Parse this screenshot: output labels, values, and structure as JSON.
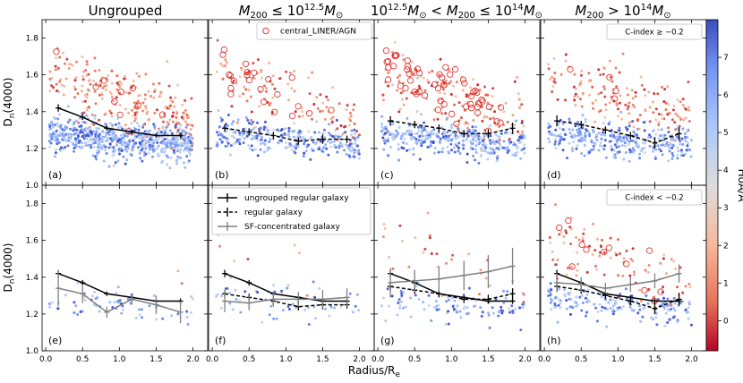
{
  "chart_data": {
    "type": "scatter",
    "x_label": "Radius/R",
    "x_label_sub": "e",
    "y_label": "D",
    "y_label_sub": "n",
    "y_label_tail": "(4000)",
    "xlim": [
      -0.05,
      2.2
    ],
    "ylim": [
      1.0,
      1.9
    ],
    "x_ticks": [
      0.0,
      0.5,
      1.0,
      1.5,
      2.0
    ],
    "x_tick_labels": [
      "0.0",
      "0.5",
      "1.0",
      "1.5",
      "2.0"
    ],
    "y_ticks": [
      1.0,
      1.2,
      1.4,
      1.6,
      1.8
    ],
    "y_tick_labels": [
      "1.0",
      "1.2",
      "1.4",
      "1.6",
      "1.8"
    ],
    "column_titles": [
      "Ungrouped",
      "M₂₀₀ ≤ 10^12.5 M⊙",
      "10^12.5 M⊙ < M₂₀₀ ≤ 10^14 M⊙",
      "M₂₀₀ > 10^14 M⊙"
    ],
    "panel_labels": [
      [
        "(a)",
        "(b)",
        "(c)",
        "(d)"
      ],
      [
        "(e)",
        "(f)",
        "(g)",
        "(h)"
      ]
    ],
    "row_notes": [
      "C-index ≥ −0.2",
      "C-index < −0.2"
    ],
    "colorbar": {
      "label": "HδA/Å",
      "range": [
        -0.8,
        8.0
      ],
      "ticks": [
        0,
        1,
        2,
        3,
        4,
        5,
        6,
        7
      ],
      "tick_labels": [
        "0",
        "1",
        "2",
        "3",
        "4",
        "5",
        "6",
        "7"
      ],
      "colormap": "coolwarm_r",
      "low_color": "#b40426",
      "mid_color": "#dddcdc",
      "high_color": "#3b4cc0"
    },
    "legend_top": {
      "label": "central_LINER/AGN",
      "marker_color": "#e0201b"
    },
    "legend_bottom": [
      {
        "label": "ungrouped regular galaxy",
        "color": "#000000",
        "style": "solid"
      },
      {
        "label": "regular galaxy",
        "color": "#000000",
        "style": "dashed"
      },
      {
        "label": "SF-concentrated galaxy",
        "color": "#808080",
        "style": "solid"
      }
    ],
    "radius_bins": [
      0.17,
      0.5,
      0.83,
      1.17,
      1.5,
      1.83
    ],
    "panels": [
      {
        "id": "a",
        "row": 0,
        "col": 0,
        "density": 1.0,
        "red_fraction": 0.25,
        "agn_count": 10,
        "series": [
          {
            "name": "ungrouped regular galaxy",
            "style": "solid",
            "color": "#000000",
            "x": [
              0.17,
              0.5,
              0.83,
              1.17,
              1.5,
              1.83
            ],
            "y": [
              1.42,
              1.37,
              1.31,
              1.29,
              1.27,
              1.27
            ],
            "err": [
              0.02,
              0.015,
              0.012,
              0.012,
              0.012,
              0.015
            ]
          }
        ]
      },
      {
        "id": "b",
        "row": 0,
        "col": 1,
        "density": 0.45,
        "red_fraction": 0.3,
        "agn_count": 22,
        "series": [
          {
            "name": "regular galaxy",
            "style": "dashed",
            "color": "#000000",
            "x": [
              0.17,
              0.5,
              0.83,
              1.17,
              1.5,
              1.83
            ],
            "y": [
              1.31,
              1.29,
              1.27,
              1.24,
              1.25,
              1.25
            ],
            "err": [
              0.02,
              0.02,
              0.02,
              0.02,
              0.025,
              0.02
            ]
          }
        ]
      },
      {
        "id": "c",
        "row": 0,
        "col": 2,
        "density": 0.55,
        "red_fraction": 0.35,
        "agn_count": 55,
        "series": [
          {
            "name": "regular galaxy",
            "style": "dashed",
            "color": "#000000",
            "x": [
              0.17,
              0.5,
              0.83,
              1.17,
              1.5,
              1.83
            ],
            "y": [
              1.35,
              1.33,
              1.31,
              1.28,
              1.28,
              1.31
            ],
            "err": [
              0.025,
              0.02,
              0.02,
              0.02,
              0.025,
              0.03
            ]
          }
        ]
      },
      {
        "id": "d",
        "row": 0,
        "col": 3,
        "density": 0.55,
        "red_fraction": 0.3,
        "agn_count": 4,
        "series": [
          {
            "name": "regular galaxy",
            "style": "dashed",
            "color": "#000000",
            "x": [
              0.17,
              0.5,
              0.83,
              1.17,
              1.5,
              1.83
            ],
            "y": [
              1.35,
              1.33,
              1.3,
              1.27,
              1.23,
              1.28
            ],
            "err": [
              0.03,
              0.02,
              0.02,
              0.02,
              0.03,
              0.035
            ]
          }
        ]
      },
      {
        "id": "e",
        "row": 1,
        "col": 0,
        "density": 0.07,
        "red_fraction": 0.1,
        "agn_count": 0,
        "series": [
          {
            "name": "ungrouped regular galaxy",
            "style": "solid",
            "color": "#000000",
            "x": [
              0.17,
              0.5,
              0.83,
              1.17,
              1.5,
              1.83
            ],
            "y": [
              1.42,
              1.37,
              1.31,
              1.29,
              1.27,
              1.27
            ],
            "err": [
              0.02,
              0.015,
              0.012,
              0.012,
              0.012,
              0.015
            ]
          },
          {
            "name": "SF-concentrated galaxy",
            "style": "solid",
            "color": "#808080",
            "x": [
              0.17,
              0.5,
              0.83,
              1.17,
              1.5,
              1.83
            ],
            "y": [
              1.34,
              1.31,
              1.21,
              1.28,
              1.25,
              1.21
            ],
            "err": [
              0.1,
              0.05,
              0.03,
              0.03,
              0.05,
              0.06
            ]
          }
        ]
      },
      {
        "id": "f",
        "row": 1,
        "col": 1,
        "density": 0.07,
        "red_fraction": 0.1,
        "agn_count": 0,
        "series": [
          {
            "name": "ungrouped regular galaxy",
            "style": "solid",
            "color": "#000000",
            "x": [
              0.17,
              0.5,
              0.83,
              1.17,
              1.5,
              1.83
            ],
            "y": [
              1.42,
              1.37,
              1.31,
              1.29,
              1.27,
              1.27
            ],
            "err": [
              0.02,
              0.015,
              0.012,
              0.012,
              0.012,
              0.015
            ]
          },
          {
            "name": "regular galaxy",
            "style": "dashed",
            "color": "#000000",
            "x": [
              0.17,
              0.5,
              0.83,
              1.17,
              1.5,
              1.83
            ],
            "y": [
              1.31,
              1.29,
              1.27,
              1.24,
              1.25,
              1.25
            ],
            "err": [
              0.02,
              0.02,
              0.02,
              0.02,
              0.025,
              0.02
            ]
          },
          {
            "name": "SF-concentrated galaxy",
            "style": "solid",
            "color": "#808080",
            "x": [
              0.17,
              0.5,
              0.83,
              1.17,
              1.5,
              1.83
            ],
            "y": [
              1.27,
              1.26,
              1.28,
              1.28,
              1.28,
              1.29
            ],
            "err": [
              0.06,
              0.04,
              0.04,
              0.04,
              0.05,
              0.05
            ]
          }
        ]
      },
      {
        "id": "g",
        "row": 1,
        "col": 2,
        "density": 0.15,
        "red_fraction": 0.25,
        "agn_count": 0,
        "series": [
          {
            "name": "ungrouped regular galaxy",
            "style": "solid",
            "color": "#000000",
            "x": [
              0.17,
              0.5,
              0.83,
              1.17,
              1.5,
              1.83
            ],
            "y": [
              1.42,
              1.37,
              1.31,
              1.29,
              1.27,
              1.27
            ],
            "err": [
              0.02,
              0.015,
              0.012,
              0.012,
              0.012,
              0.015
            ]
          },
          {
            "name": "regular galaxy",
            "style": "dashed",
            "color": "#000000",
            "x": [
              0.17,
              0.5,
              0.83,
              1.17,
              1.5,
              1.83
            ],
            "y": [
              1.35,
              1.33,
              1.31,
              1.28,
              1.28,
              1.31
            ],
            "err": [
              0.025,
              0.02,
              0.02,
              0.02,
              0.025,
              0.03
            ]
          },
          {
            "name": "SF-concentrated galaxy",
            "style": "solid",
            "color": "#808080",
            "x": [
              0.17,
              0.5,
              0.83,
              1.17,
              1.5,
              1.83
            ],
            "y": [
              1.37,
              1.38,
              1.39,
              1.41,
              1.43,
              1.46
            ],
            "err": [
              0.08,
              0.06,
              0.07,
              0.08,
              0.09,
              0.1
            ]
          }
        ]
      },
      {
        "id": "h",
        "row": 1,
        "col": 3,
        "density": 0.3,
        "red_fraction": 0.35,
        "agn_count": 12,
        "series": [
          {
            "name": "ungrouped regular galaxy",
            "style": "solid",
            "color": "#000000",
            "x": [
              0.17,
              0.5,
              0.83,
              1.17,
              1.5,
              1.83
            ],
            "y": [
              1.42,
              1.37,
              1.31,
              1.29,
              1.27,
              1.27
            ],
            "err": [
              0.02,
              0.015,
              0.012,
              0.012,
              0.012,
              0.015
            ]
          },
          {
            "name": "regular galaxy",
            "style": "dashed",
            "color": "#000000",
            "x": [
              0.17,
              0.5,
              0.83,
              1.17,
              1.5,
              1.83
            ],
            "y": [
              1.35,
              1.33,
              1.3,
              1.27,
              1.23,
              1.28
            ],
            "err": [
              0.03,
              0.02,
              0.02,
              0.02,
              0.03,
              0.035
            ]
          },
          {
            "name": "SF-concentrated galaxy",
            "style": "solid",
            "color": "#808080",
            "x": [
              0.17,
              0.5,
              0.83,
              1.17,
              1.5,
              1.83
            ],
            "y": [
              1.37,
              1.36,
              1.34,
              1.36,
              1.38,
              1.42
            ],
            "err": [
              0.05,
              0.04,
              0.03,
              0.04,
              0.04,
              0.05
            ]
          }
        ]
      }
    ]
  }
}
